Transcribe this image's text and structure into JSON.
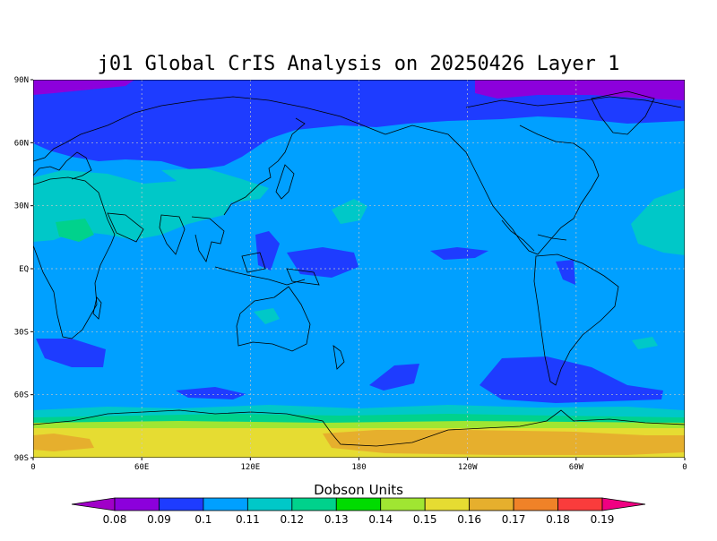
{
  "title": "j01 Global CrIS Analysis on 20250426 Layer 1",
  "map": {
    "lat_range": [
      -90,
      90
    ],
    "lon_range": [
      0,
      360
    ],
    "lat_ticks": [
      {
        "value": 90,
        "label": "90N"
      },
      {
        "value": 60,
        "label": "60N"
      },
      {
        "value": 30,
        "label": "30N"
      },
      {
        "value": 0,
        "label": "EQ"
      },
      {
        "value": -30,
        "label": "30S"
      },
      {
        "value": -60,
        "label": "60S"
      },
      {
        "value": -90,
        "label": "90S"
      }
    ],
    "lon_ticks": [
      {
        "value": 0,
        "label": "0"
      },
      {
        "value": 60,
        "label": "60E"
      },
      {
        "value": 120,
        "label": "120E"
      },
      {
        "value": 180,
        "label": "180"
      },
      {
        "value": 240,
        "label": "120W"
      },
      {
        "value": 300,
        "label": "60W"
      },
      {
        "value": 360,
        "label": "0"
      }
    ],
    "grid": true
  },
  "colorbar": {
    "title": "Dobson Units",
    "labels": [
      "0.08",
      "0.09",
      "0.1",
      "0.11",
      "0.12",
      "0.13",
      "0.14",
      "0.15",
      "0.16",
      "0.17",
      "0.18",
      "0.19"
    ],
    "colors": [
      "#a000c8",
      "#8c00dc",
      "#1e3cff",
      "#00a0ff",
      "#00c8c8",
      "#00d28c",
      "#00dc00",
      "#a0e632",
      "#e6dc32",
      "#e6af2d",
      "#f08228",
      "#fa3c3c",
      "#f00082"
    ]
  },
  "chart_data": {
    "type": "heatmap",
    "title": "j01 Global CrIS Analysis on 20250426 Layer 1",
    "xlabel": "",
    "ylabel": "",
    "x_range": [
      0,
      360
    ],
    "y_range": [
      -90,
      90
    ],
    "colorbar_label": "Dobson Units",
    "colorbar_ticks": [
      0.08,
      0.09,
      0.1,
      0.11,
      0.12,
      0.13,
      0.14,
      0.15,
      0.16,
      0.17,
      0.18,
      0.19
    ],
    "dominant_value_range": [
      0.1,
      0.11
    ],
    "min_region": "Arctic polar cap (0.08-0.09)",
    "max_region": "Antarctica interior (0.16-0.17)"
  }
}
